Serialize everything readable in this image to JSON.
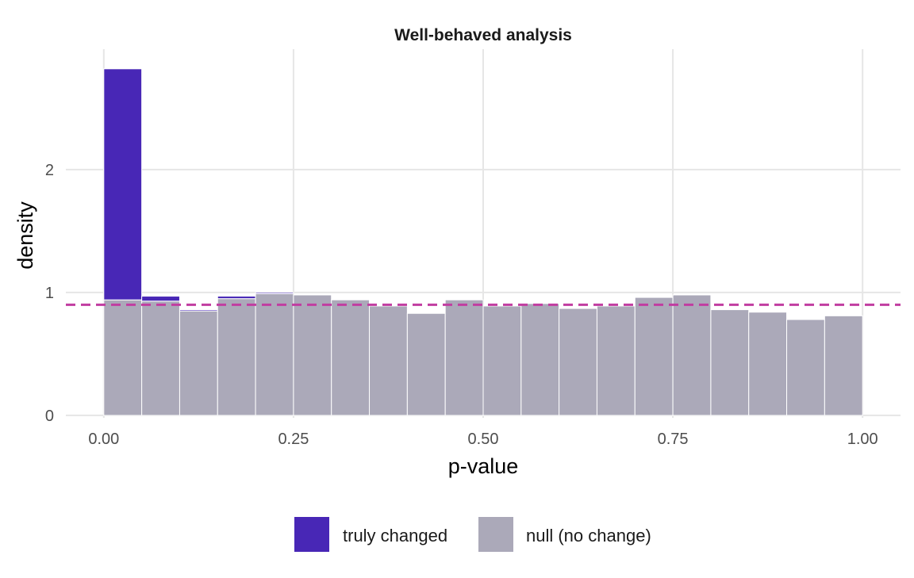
{
  "chart_data": {
    "type": "bar",
    "title": "Well-behaved analysis",
    "xlabel": "p-value",
    "ylabel": "density",
    "xlim": [
      -0.05,
      1.05
    ],
    "ylim": [
      -0.02,
      2.98
    ],
    "x_ticks": [
      0,
      0.25,
      0.5,
      0.75,
      1
    ],
    "x_tick_labels": [
      "0.00",
      "0.25",
      "0.50",
      "0.75",
      "1.00"
    ],
    "y_ticks": [
      0,
      1,
      2
    ],
    "y_tick_labels": [
      "0",
      "1",
      "2"
    ],
    "bin_width": 0.05,
    "bin_starts": [
      0,
      0.05,
      0.1,
      0.15,
      0.2,
      0.25,
      0.3,
      0.35,
      0.4,
      0.45,
      0.5,
      0.55,
      0.6,
      0.65,
      0.7,
      0.75,
      0.8,
      0.85,
      0.9,
      0.95
    ],
    "series": [
      {
        "name": "null (no change)",
        "color": "#aba9b9",
        "values": [
          0.94,
          0.93,
          0.85,
          0.95,
          0.99,
          0.98,
          0.94,
          0.89,
          0.83,
          0.94,
          0.89,
          0.91,
          0.87,
          0.89,
          0.96,
          0.98,
          0.86,
          0.84,
          0.78,
          0.81
        ]
      },
      {
        "name": "truly changed",
        "color": "#4827b6",
        "values": [
          1.88,
          0.04,
          0.01,
          0.02,
          0.01,
          0,
          0,
          0,
          0,
          0,
          0,
          0,
          0,
          0,
          0,
          0,
          0,
          0,
          0,
          0
        ]
      }
    ],
    "reference_line": {
      "y": 0.9,
      "style": "dashed",
      "color": "#c13da1"
    },
    "grid": true,
    "legend_position": "bottom"
  }
}
